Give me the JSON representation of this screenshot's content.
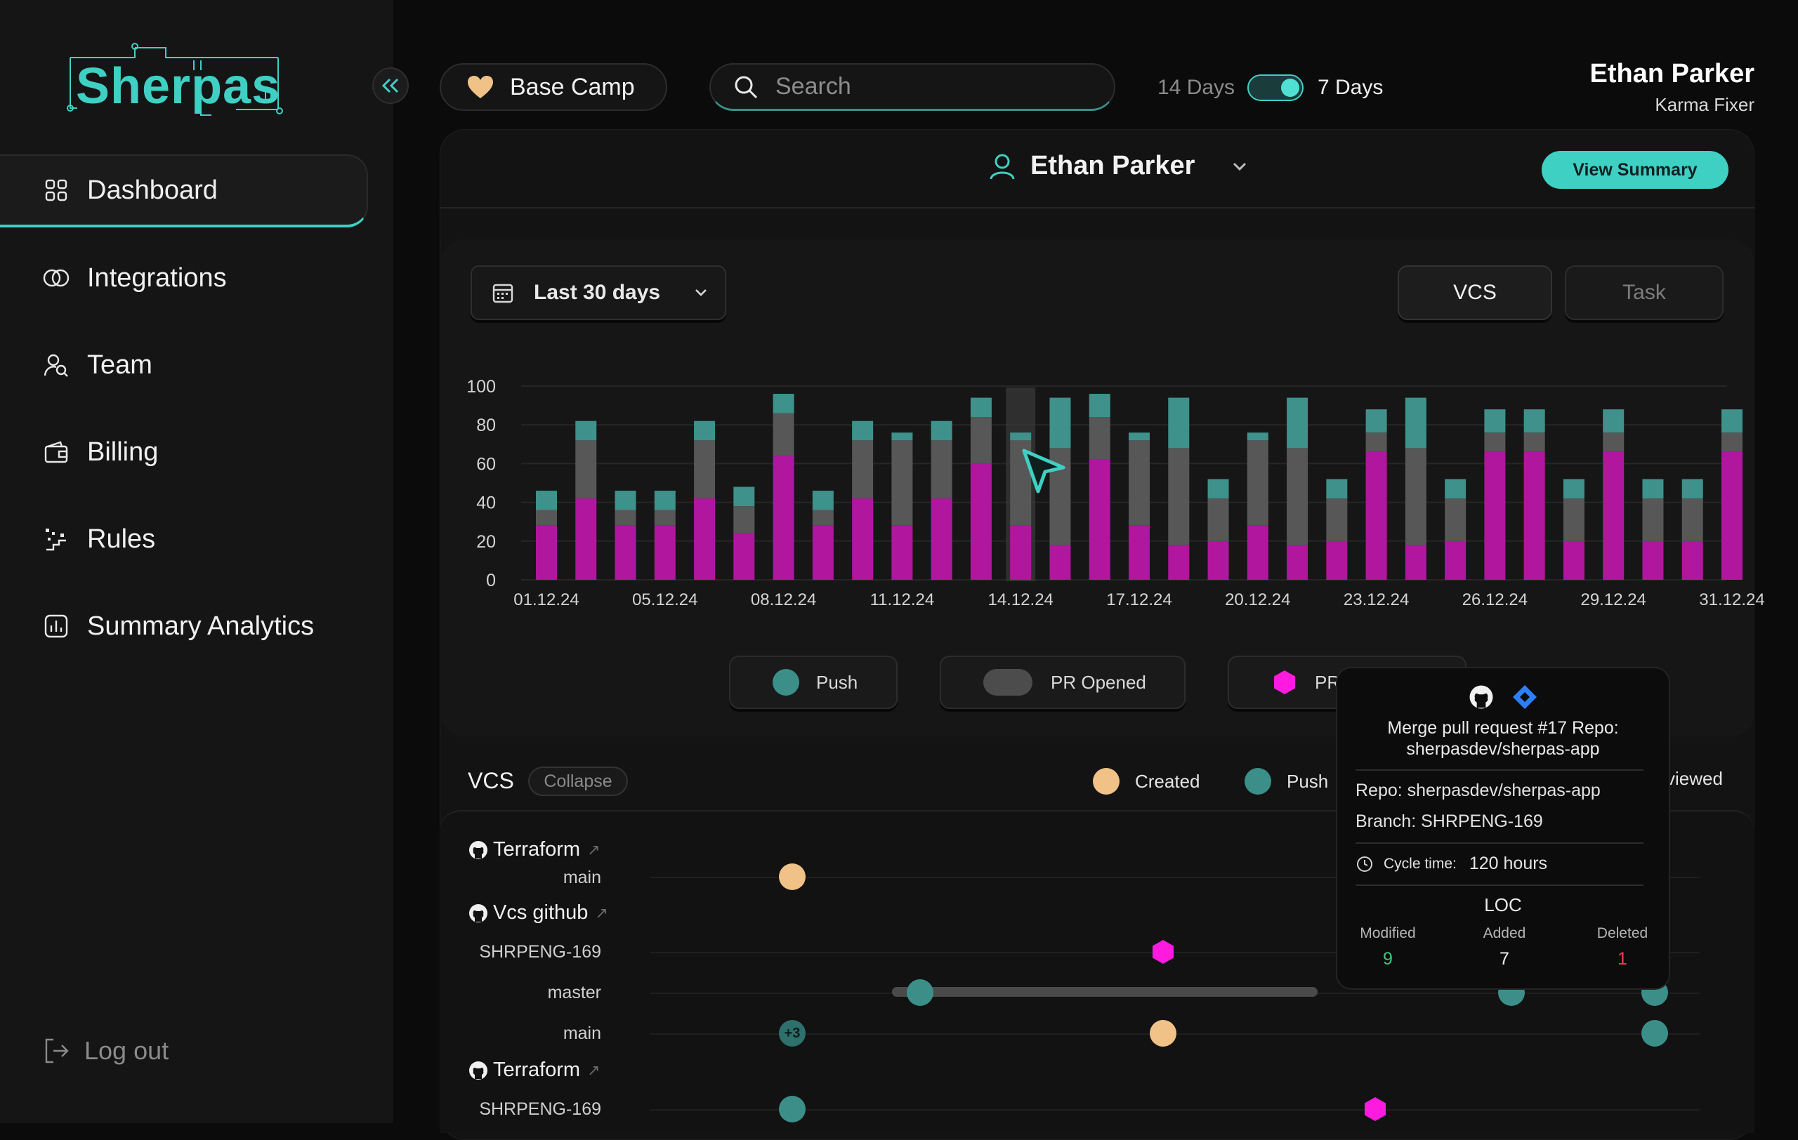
{
  "sidebar": {
    "logo": "Sherpas",
    "items": [
      {
        "label": "Dashboard",
        "icon": "grid-icon",
        "active": true
      },
      {
        "label": "Integrations",
        "icon": "link-icon"
      },
      {
        "label": "Team",
        "icon": "team-icon"
      },
      {
        "label": "Billing",
        "icon": "wallet-icon"
      },
      {
        "label": "Rules",
        "icon": "rules-icon"
      },
      {
        "label": "Summary Analytics",
        "icon": "analytics-icon"
      }
    ],
    "logout": "Log out"
  },
  "topbar": {
    "workspace": "Base Camp",
    "search_placeholder": "Search",
    "toggle_left": "14 Days",
    "toggle_right": "7 Days",
    "toggle_on": true,
    "user_name": "Ethan Parker",
    "user_role": "Karma Fixer"
  },
  "panel": {
    "person": "Ethan Parker",
    "view_summary": "View Summary",
    "range": "Last 30 days",
    "tabs": [
      "VCS",
      "Task"
    ]
  },
  "chart_data": {
    "type": "bar",
    "stacked": true,
    "ylim": [
      0,
      100
    ],
    "yticks": [
      0,
      20,
      40,
      60,
      80,
      100
    ],
    "xtick_labels": [
      "01.12.24",
      "05.12.24",
      "08.12.24",
      "11.12.24",
      "14.12.24",
      "17.12.24",
      "20.12.24",
      "23.12.24",
      "26.12.24",
      "29.12.24",
      "31.12.24"
    ],
    "xtick_index": [
      0,
      3,
      6,
      9,
      12,
      15,
      18,
      21,
      24,
      27,
      30
    ],
    "highlight_index": 12,
    "colors": {
      "PR Merged": "#b0179e",
      "PR Opened": "#575757",
      "Push": "#3f918b"
    },
    "series": [
      {
        "name": "PR Merged",
        "values": [
          28,
          42,
          28,
          28,
          42,
          24,
          64,
          28,
          42,
          28,
          42,
          60,
          28,
          18,
          62,
          28,
          18,
          20,
          28,
          18,
          20,
          66,
          18,
          20,
          66,
          66,
          20,
          66,
          20,
          20,
          66
        ]
      },
      {
        "name": "PR Opened",
        "values": [
          8,
          30,
          8,
          8,
          30,
          14,
          22,
          8,
          30,
          44,
          30,
          24,
          44,
          50,
          22,
          44,
          50,
          22,
          44,
          50,
          22,
          10,
          50,
          22,
          10,
          10,
          22,
          10,
          22,
          22,
          10
        ]
      },
      {
        "name": "Push",
        "values": [
          10,
          10,
          10,
          10,
          10,
          10,
          10,
          10,
          10,
          4,
          10,
          10,
          4,
          26,
          12,
          4,
          26,
          10,
          4,
          26,
          10,
          12,
          26,
          10,
          12,
          12,
          10,
          12,
          10,
          10,
          12
        ]
      }
    ]
  },
  "legend": {
    "push": "Push",
    "pr_opened": "PR Opened",
    "pr_merged": "PR"
  },
  "vcs": {
    "title": "VCS",
    "collapse": "Collapse",
    "legend": {
      "created": "Created",
      "push": "Push",
      "reviewed": "viewed"
    },
    "repos": [
      {
        "name": "Terraform",
        "branches": [
          "main"
        ]
      },
      {
        "name": "Vcs github",
        "branches": [
          "SHRPENG-169",
          "master",
          "main"
        ]
      },
      {
        "name": "Terraform",
        "branches": [
          "SHRPENG-169"
        ]
      }
    ],
    "more_count": "+3"
  },
  "tooltip": {
    "title": "Merge pull request #17 Repo: sherpasdev/sherpas-app",
    "repo": "Repo: sherpasdev/sherpas-app",
    "branch": "Branch: SHRPENG-169",
    "cycle_label": "Cycle time:",
    "cycle_value": "120 hours",
    "loc_title": "LOC",
    "modified_label": "Modified",
    "added_label": "Added",
    "deleted_label": "Deleted",
    "modified": "9",
    "added": "7",
    "deleted": "1"
  }
}
